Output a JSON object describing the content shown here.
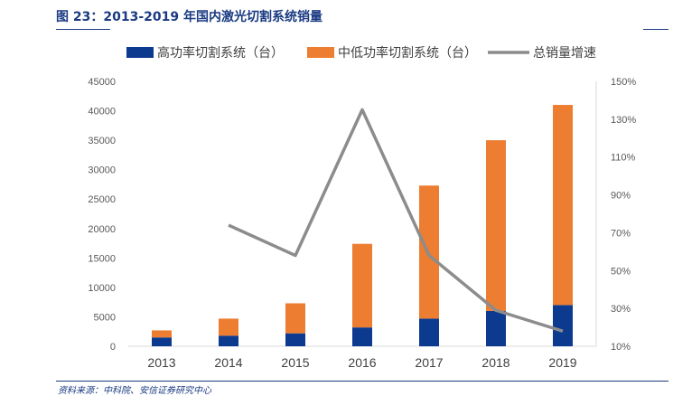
{
  "title": "图 23：2013-2019 年国内激光切割系统销量",
  "source": "资料来源：中科院、安信证券研究中心",
  "colors": {
    "high": "#0b3a8f",
    "low": "#ed7d31",
    "line": "#8c8c8c",
    "accent": "#1a3a82"
  },
  "chart_data": {
    "type": "bar",
    "stacked": true,
    "categories": [
      "2013",
      "2014",
      "2015",
      "2016",
      "2017",
      "2018",
      "2019"
    ],
    "series": [
      {
        "name": "高功率切割系统（台）",
        "type": "bar",
        "axis": "left",
        "values": [
          1500,
          1800,
          2200,
          3200,
          4700,
          6000,
          7000
        ]
      },
      {
        "name": "中低功率切割系统（台）",
        "type": "bar",
        "axis": "left",
        "values": [
          1200,
          2900,
          5100,
          14200,
          22600,
          29000,
          34000
        ]
      },
      {
        "name": "总销量增速",
        "type": "line",
        "axis": "right",
        "values": [
          null,
          0.74,
          0.58,
          1.35,
          0.58,
          0.29,
          0.18
        ]
      }
    ],
    "yleft": {
      "lim": [
        0,
        45000
      ],
      "ticks": [
        "0",
        "5000",
        "10000",
        "15000",
        "20000",
        "25000",
        "30000",
        "35000",
        "40000",
        "45000"
      ]
    },
    "yright": {
      "lim": [
        0.1,
        1.5
      ],
      "ticks": [
        "10%",
        "30%",
        "50%",
        "70%",
        "90%",
        "110%",
        "130%",
        "150%"
      ]
    },
    "legend": "top",
    "grid": false
  }
}
